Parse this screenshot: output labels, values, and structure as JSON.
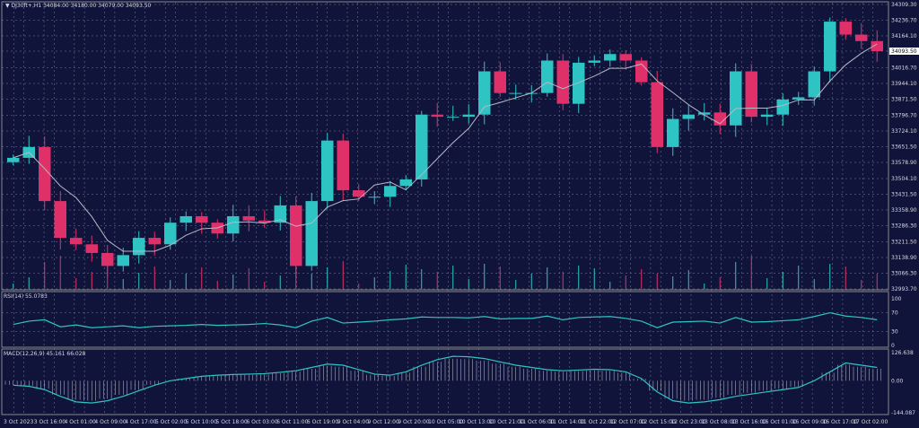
{
  "header": {
    "symbol": "DJ30ft+,H1",
    "ohlc": "34084.00 34180.00 34079.00 34093.50"
  },
  "rsi_label": "RSI(14) 55.0783",
  "macd_label": "MACD(12,26,9) 45.161 66.028",
  "colors": {
    "bg": "#11143a",
    "up": "#2ec4c4",
    "down": "#e0306a",
    "ma": "#b8b8c8",
    "grid": "#7a7e99"
  },
  "chart_data": [
    {
      "type": "candlestick",
      "title": "DJ30ft+,H1",
      "y_ticks": [
        "34309.30",
        "34236.70",
        "34164.10",
        "34093.50",
        "34016.70",
        "33944.10",
        "33871.50",
        "33796.70",
        "33724.10",
        "33651.50",
        "33578.90",
        "33504.10",
        "33431.50",
        "33358.90",
        "33286.30",
        "33211.50",
        "33138.90",
        "33066.30",
        "32993.70"
      ],
      "ylim": [
        32993.7,
        34309.3
      ],
      "last_price": "34093.50",
      "x_ticks": [
        "3 Oct 2023",
        "3 Oct 16:00",
        "4 Oct 01:00",
        "4 Oct 09:00",
        "4 Oct 17:00",
        "5 Oct 02:00",
        "5 Oct 10:00",
        "5 Oct 18:00",
        "6 Oct 03:00",
        "6 Oct 11:00",
        "6 Oct 19:00",
        "9 Oct 04:00",
        "9 Oct 12:00",
        "9 Oct 20:00",
        "10 Oct 05:00",
        "10 Oct 13:00",
        "10 Oct 21:00",
        "11 Oct 06:00",
        "11 Oct 14:00",
        "11 Oct 22:00",
        "12 Oct 07:00",
        "12 Oct 15:00",
        "12 Oct 23:00",
        "13 Oct 08:00",
        "13 Oct 16:00",
        "16 Oct 01:00",
        "16 Oct 09:00",
        "16 Oct 17:00",
        "17 Oct 02:00"
      ],
      "close": [
        33600,
        33650,
        33400,
        33230,
        33200,
        33160,
        33100,
        33150,
        33230,
        33200,
        33300,
        33330,
        33300,
        33250,
        33330,
        33310,
        33300,
        33380,
        33100,
        33400,
        33680,
        33450,
        33420,
        33420,
        33470,
        33500,
        33800,
        33790,
        33790,
        33800,
        34000,
        33900,
        33900,
        33900,
        34050,
        33850,
        34040,
        34050,
        34080,
        34050,
        33950,
        33650,
        33780,
        33800,
        33810,
        33750,
        34000,
        33790,
        33800,
        33870,
        33880,
        34000,
        34230,
        34170,
        34140,
        34093.5
      ]
    },
    {
      "type": "line",
      "title": "RSI(14)",
      "y_ticks": [
        "100",
        "70",
        "30",
        "0"
      ],
      "ylim": [
        0,
        100
      ],
      "values": [
        45,
        52,
        55,
        40,
        44,
        38,
        40,
        42,
        38,
        41,
        42,
        43,
        45,
        43,
        44,
        45,
        47,
        44,
        38,
        52,
        60,
        48,
        50,
        52,
        55,
        57,
        61,
        60,
        60,
        59,
        62,
        57,
        58,
        58,
        63,
        55,
        60,
        61,
        62,
        58,
        52,
        38,
        50,
        51,
        52,
        48,
        60,
        50,
        51,
        53,
        55,
        62,
        70,
        63,
        60,
        55.08
      ]
    },
    {
      "type": "line+histogram",
      "title": "MACD(12,26,9)",
      "y_ticks": [
        "126.638",
        "0.00",
        "-144.087"
      ],
      "ylim": [
        -144.087,
        126.638
      ],
      "values": [
        -20,
        -25,
        -40,
        -70,
        -95,
        -100,
        -90,
        -70,
        -45,
        -20,
        0,
        10,
        20,
        25,
        28,
        30,
        32,
        38,
        45,
        60,
        75,
        70,
        50,
        30,
        25,
        40,
        70,
        95,
        110,
        108,
        100,
        85,
        70,
        60,
        50,
        45,
        48,
        52,
        50,
        40,
        10,
        -50,
        -90,
        -100,
        -95,
        -85,
        -70,
        -60,
        -50,
        -40,
        -30,
        0,
        40,
        80,
        70,
        60
      ]
    }
  ]
}
